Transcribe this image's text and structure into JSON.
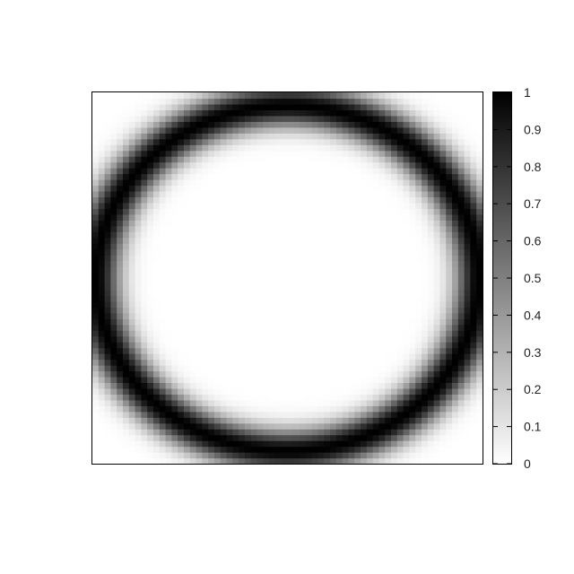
{
  "chart_data": {
    "type": "heatmap",
    "title": "",
    "xlabel": "",
    "ylabel": "",
    "colormap": "gray-inverted",
    "grid": false,
    "colorbar": {
      "position": "right",
      "range": [
        0,
        1
      ],
      "low_color": "#ffffff",
      "high_color": "#000000",
      "ticks": [
        {
          "value": 0,
          "label": "0"
        },
        {
          "value": 0.1,
          "label": "0.1"
        },
        {
          "value": 0.2,
          "label": "0.2"
        },
        {
          "value": 0.3,
          "label": "0.3"
        },
        {
          "value": 0.4,
          "label": "0.4"
        },
        {
          "value": 0.5,
          "label": "0.5"
        },
        {
          "value": 0.6,
          "label": "0.6"
        },
        {
          "value": 0.7,
          "label": "0.7"
        },
        {
          "value": 0.8,
          "label": "0.8"
        },
        {
          "value": 0.9,
          "label": "0.9"
        },
        {
          "value": 1,
          "label": "1"
        }
      ]
    },
    "field": {
      "description_shape": "ring",
      "x_range": [
        -1,
        1
      ],
      "y_range": [
        -1,
        1
      ],
      "ring_radius_x": 0.98,
      "ring_radius_y": 0.93,
      "ring_width": 0.12,
      "peak_value": 1,
      "grid_cells": 64
    }
  }
}
